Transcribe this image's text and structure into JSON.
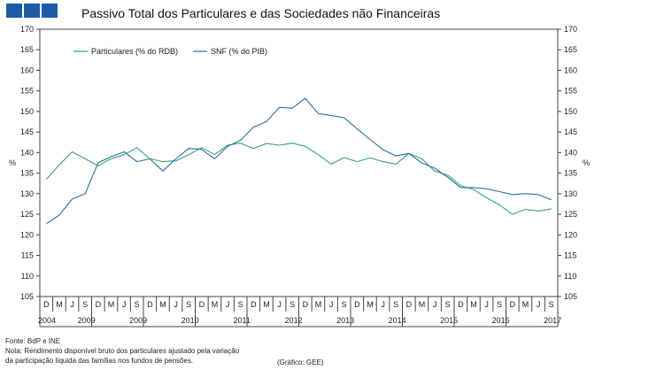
{
  "header": {
    "title": "Passivo Total dos Particulares e das Sociedades não Financeiras",
    "logo_color": "#1f5aa6"
  },
  "footer": {
    "source": "Fonte: BdP e INE",
    "note1": "Nota: Rendimento disponível bruto dos particulares ajustado pela variação",
    "note2": " da participação líquida das famílias nos fundos de pensões.",
    "credit": "(Gráfico: GEE)"
  },
  "chart_data": {
    "type": "line",
    "title": "Passivo Total dos Particulares e das Sociedades não Financeiras",
    "ylabel_left": "%",
    "ylabel_right": "%",
    "ylim": [
      105,
      170
    ],
    "yticks": [
      105,
      110,
      115,
      120,
      125,
      130,
      135,
      140,
      145,
      150,
      155,
      160,
      165,
      170
    ],
    "x_quarters": [
      "D",
      "M",
      "J",
      "S",
      "D",
      "M",
      "J",
      "S",
      "D",
      "M",
      "J",
      "S",
      "D",
      "M",
      "J",
      "S",
      "D",
      "M",
      "J",
      "S",
      "D",
      "M",
      "J",
      "S",
      "D",
      "M",
      "J",
      "S",
      "D",
      "M",
      "J",
      "S",
      "D",
      "M",
      "J",
      "S",
      "D",
      "M",
      "J",
      "S"
    ],
    "year_labels": [
      {
        "label": "2004",
        "index": 0
      },
      {
        "label": "2009",
        "index": 2
      },
      {
        "label": "2009",
        "index": 6
      },
      {
        "label": "2010",
        "index": 10
      },
      {
        "label": "2011",
        "index": 14
      },
      {
        "label": "2012",
        "index": 18
      },
      {
        "label": "2013",
        "index": 22
      },
      {
        "label": "2014",
        "index": 26
      },
      {
        "label": "2015",
        "index": 30
      },
      {
        "label": "2016",
        "index": 34
      },
      {
        "label": "2017",
        "index": 38
      }
    ],
    "legend": [
      {
        "name": "Particulares (% do RDB)",
        "color": "#3aa07a"
      },
      {
        "name": "SNF (% do PIB)",
        "color": "#2b6f9c"
      }
    ],
    "series": [
      {
        "name": "Particulares (% do RDB)",
        "color": "#3aa07a",
        "values": [
          133.5,
          137.0,
          140.2,
          138.5,
          136.8,
          138.5,
          139.5,
          141.2,
          138.5,
          137.8,
          138.0,
          139.5,
          141.2,
          139.5,
          141.8,
          142.3,
          141.0,
          142.2,
          141.8,
          142.3,
          141.5,
          139.5,
          137.2,
          138.8,
          137.8,
          138.7,
          137.8,
          137.2,
          139.8,
          138.5,
          135.5,
          134.5,
          132.0,
          131.0,
          129.0,
          127.3,
          125.0,
          126.2,
          125.8,
          126.3
        ]
      },
      {
        "name": "SNF (% do PIB)",
        "color": "#2b6f9c",
        "values": [
          122.7,
          124.8,
          128.7,
          130.0,
          137.5,
          139.0,
          140.2,
          137.8,
          138.5,
          135.5,
          138.5,
          141.0,
          140.8,
          138.5,
          141.5,
          143.0,
          146.2,
          147.5,
          151.0,
          150.8,
          153.2,
          149.5,
          149.0,
          148.5,
          145.8,
          143.2,
          140.7,
          139.2,
          139.8,
          137.5,
          136.2,
          134.0,
          131.5,
          131.5,
          131.2,
          130.5,
          129.8,
          130.0,
          129.8,
          128.5
        ]
      }
    ]
  }
}
